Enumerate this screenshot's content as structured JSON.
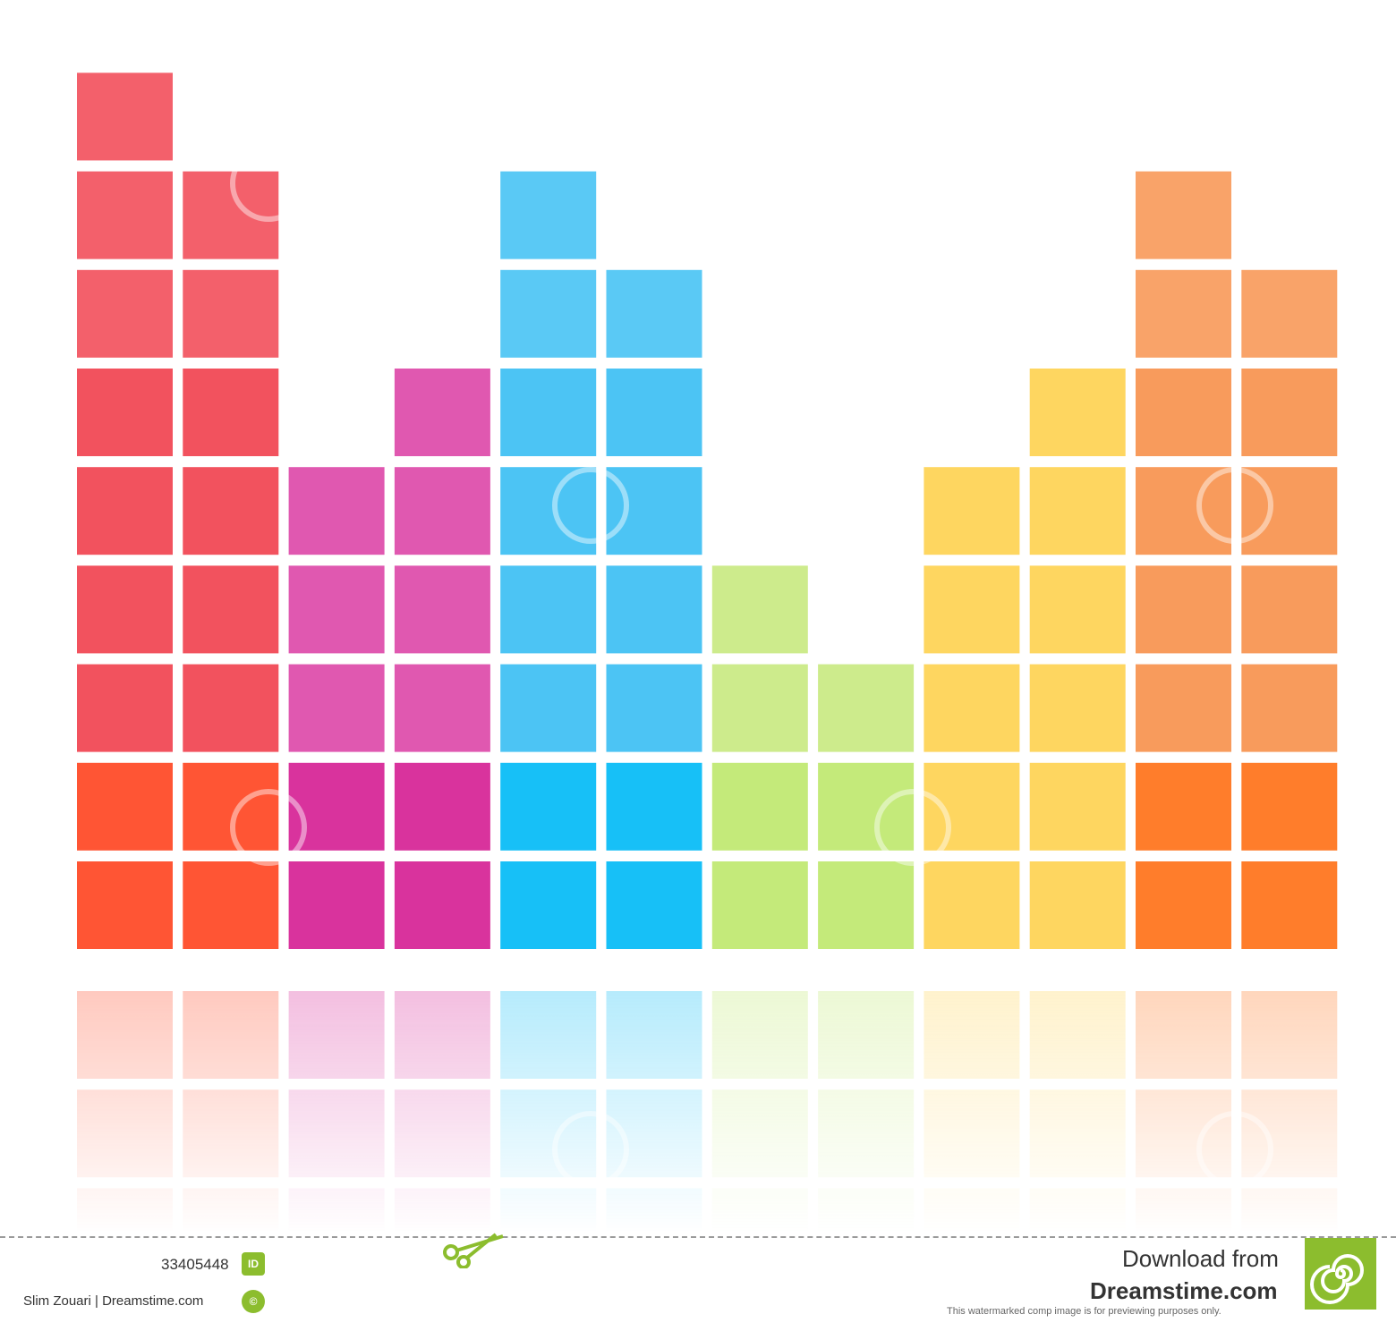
{
  "chart_data": {
    "type": "bar",
    "style": "segmented equalizer bars with mirrored reflection",
    "series": [
      {
        "color": "#f2525e",
        "bottom_color": "#ff5534",
        "values": [
          9,
          8
        ]
      },
      {
        "color": "#e058b0",
        "bottom_color": "#d9339d",
        "values": [
          5,
          6
        ]
      },
      {
        "color": "#4cc4f4",
        "bottom_color": "#17c0f7",
        "values": [
          8,
          7
        ]
      },
      {
        "color": "#cdeb8c",
        "bottom_color": "#c4ea7a",
        "values": [
          4,
          3
        ]
      },
      {
        "color": "#fed660",
        "bottom_color": "#fed660",
        "values": [
          5,
          6
        ]
      },
      {
        "color": "#f89b5c",
        "bottom_color": "#ff7d2b",
        "values": [
          8,
          7
        ]
      }
    ],
    "bar_values": [
      9,
      8,
      5,
      6,
      8,
      7,
      4,
      3,
      5,
      6,
      8,
      7
    ]
  },
  "footer": {
    "image_id": "33405448",
    "id_badge": "ID",
    "credit_symbol": "©",
    "credit": "Slim Zouari | Dreamstime.com",
    "download_line1": "Download from",
    "download_line2": "Dreamstime.com",
    "note": "This watermarked comp image is for previewing purposes only."
  },
  "watermark_text": "dreamstime"
}
